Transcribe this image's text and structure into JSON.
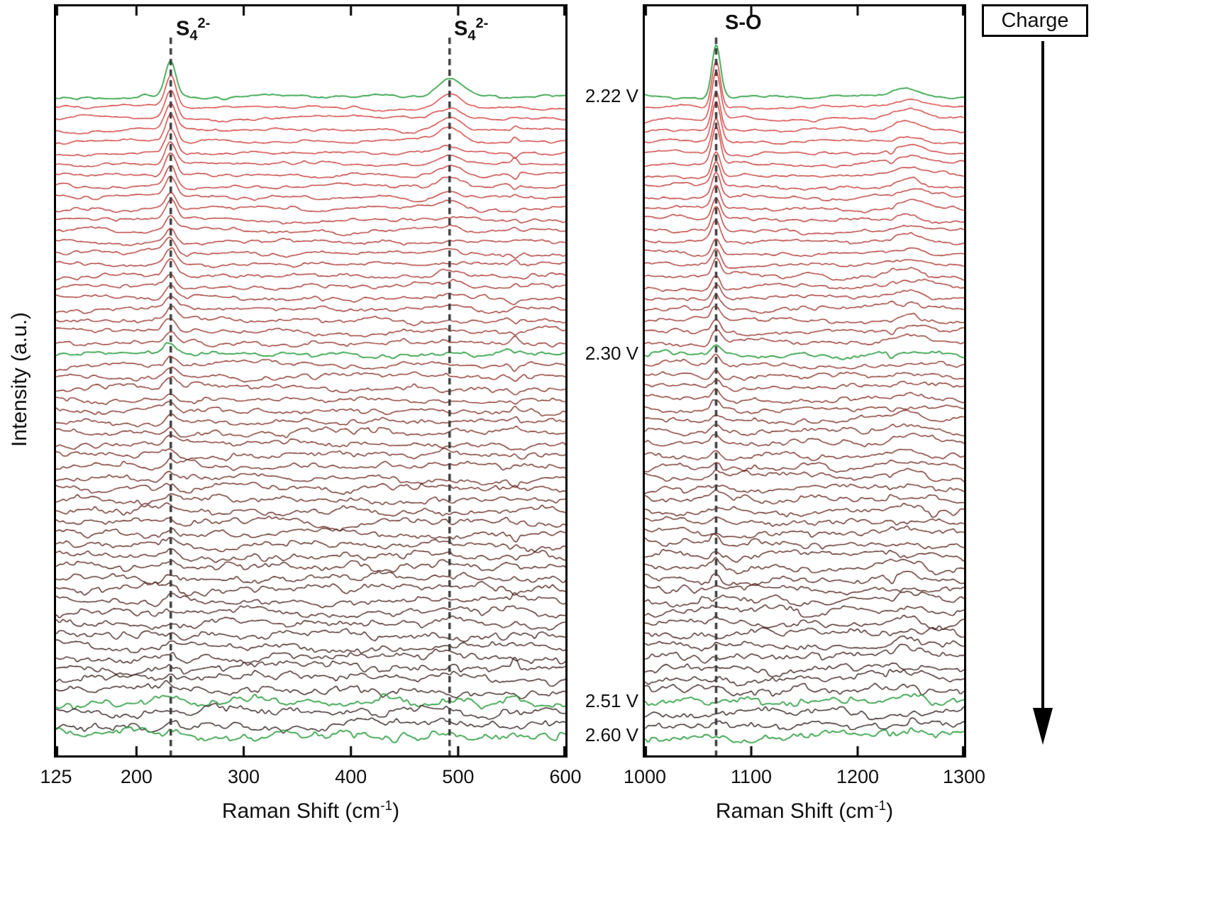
{
  "figure": {
    "ylabel": "Intensity (a.u.)",
    "charge_label": "Charge"
  },
  "chart_data": [
    {
      "type": "line",
      "panel": "left",
      "title": "",
      "xlabel": "Raman Shift (cm⁻¹)",
      "xlabel_parts": {
        "pre": "Raman Shift (cm",
        "sup": "-1",
        "post": ")"
      },
      "ylabel": "Intensity (a.u.)",
      "xlim": [
        125,
        600
      ],
      "xticks": [
        125,
        200,
        300,
        400,
        500,
        600
      ],
      "grid": false,
      "dashed_lines": [
        232,
        492
      ],
      "peak_labels": [
        {
          "base": "S",
          "sub": "4",
          "sup": "2-",
          "x": 232
        },
        {
          "base": "S",
          "sub": "4",
          "sup": "2-",
          "x": 492
        }
      ],
      "peaks": [
        {
          "center": 232,
          "sigma": 5,
          "amp0": 40,
          "tau": 17,
          "ampMin": 4
        },
        {
          "center": 492,
          "sigma": 11,
          "amp0": 22,
          "tau": 8,
          "ampMin": 1.5
        }
      ],
      "artifact": {
        "center": 553,
        "sigma": 2.5,
        "amp": 9
      }
    },
    {
      "type": "line",
      "panel": "right",
      "title": "",
      "xlabel": "Raman Shift (cm⁻¹)",
      "xlabel_parts": {
        "pre": "Raman Shift (cm",
        "sup": "-1",
        "post": ")"
      },
      "xlim": [
        1000,
        1300
      ],
      "xticks": [
        1000,
        1100,
        1200,
        1300
      ],
      "grid": false,
      "dashed_lines": [
        1067
      ],
      "peak_label": {
        "text": "S-O",
        "x": 1067
      },
      "peaks": [
        {
          "center": 1067,
          "sigma": 4,
          "amp0": 68,
          "tau": 13,
          "ampMin": 3
        },
        {
          "center": 1248,
          "sigma": 13,
          "amp0": 9,
          "tau": 30,
          "ampMin": 3
        }
      ],
      "artifact": {
        "center": 1232,
        "sigma": 2.5,
        "amp": 7
      }
    }
  ],
  "series_meta": {
    "description": "Operando Raman spectra waterfall during charge; top spectrum first, stacked downward over time",
    "n_traces": 58,
    "green_trace_indices": [
      0,
      23,
      54,
      57
    ],
    "voltage_labels": [
      {
        "text": "2.22 V",
        "trace": 0
      },
      {
        "text": "2.30 V",
        "trace": 23
      },
      {
        "text": "2.51 V",
        "trace": 54
      },
      {
        "text": "2.60 V",
        "trace": 57
      }
    ],
    "colors": {
      "highlight": "#2a9c3e",
      "top": "#d32a28",
      "mid": "#762016",
      "bottom": "#1a0c0a",
      "dashed_line": "#3d3d3d"
    }
  }
}
